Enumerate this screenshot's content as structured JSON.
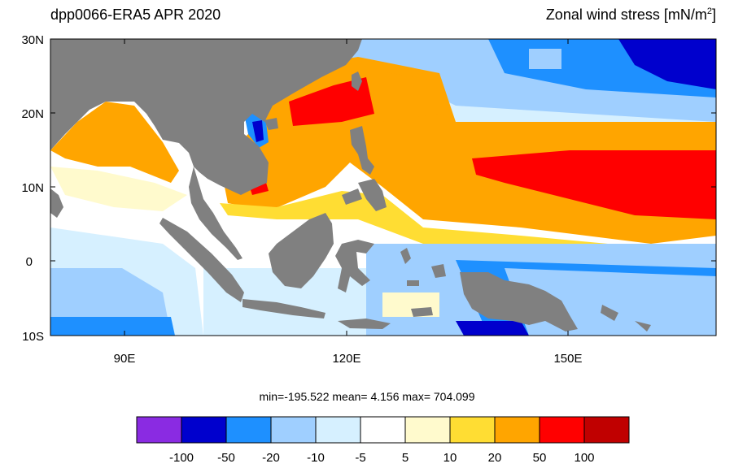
{
  "title": {
    "left": "dpp0066-ERA5  APR 2020",
    "right_prefix": "Zonal wind stress [mN/m",
    "right_sup": "2",
    "right_suffix": "]"
  },
  "stats": {
    "text": "min=-195.522  mean=   4.156  max= 704.099"
  },
  "map": {
    "lat_labels": [
      "30N",
      "20N",
      "10N",
      "0",
      "10S"
    ],
    "lon_labels": [
      "90E",
      "120E",
      "150E"
    ],
    "land_color": "#808080",
    "ocean_default": "#ffffff"
  },
  "colorbar": {
    "colors": [
      "#8a2be2",
      "#0000cd",
      "#1e90ff",
      "#9fcfff",
      "#d6f0ff",
      "#ffffff",
      "#fffacd",
      "#ffdd33",
      "#ffa500",
      "#ff0000",
      "#c00000"
    ],
    "labels": [
      "-100",
      "-50",
      "-20",
      "-10",
      "-5",
      "5",
      "10",
      "20",
      "50",
      "100"
    ]
  }
}
